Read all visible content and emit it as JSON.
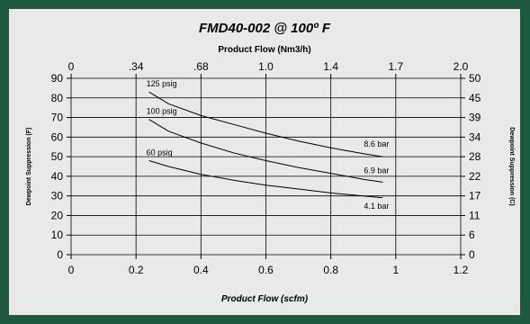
{
  "chart_data": {
    "type": "line",
    "title": "FMD40-002 @ 100º F",
    "xlabel": "Product Flow (scfm)",
    "x2label": "Product Flow (Nm3/h)",
    "ylabel": "Dewpoint Suppression (F)",
    "y2label": "Dewpoint Suppression (C)",
    "xlim": [
      0,
      1.2
    ],
    "ylim": [
      0,
      90
    ],
    "x_ticks": [
      "0",
      "0.2",
      "0.4",
      "0.6",
      "0.8",
      "1",
      "1.2"
    ],
    "x2_ticks": [
      "0",
      ".34",
      ".68",
      "1.0",
      "1.4",
      "1.7",
      "2.0"
    ],
    "y_ticks": [
      "0",
      "10",
      "20",
      "30",
      "40",
      "50",
      "60",
      "70",
      "80",
      "90"
    ],
    "y2_ticks": [
      "0",
      "6",
      "11",
      "17",
      "22",
      "28",
      "34",
      "39",
      "45",
      "50"
    ],
    "grid": true,
    "series": [
      {
        "start_label": "125 psig",
        "end_label": "8.6 bar",
        "x": [
          0.24,
          0.3,
          0.4,
          0.5,
          0.6,
          0.7,
          0.8,
          0.9,
          0.96
        ],
        "y": [
          83,
          77,
          71,
          66.5,
          62,
          58,
          54.5,
          51.5,
          50
        ]
      },
      {
        "start_label": "100 psig",
        "end_label": "6.9 bar",
        "x": [
          0.24,
          0.3,
          0.4,
          0.5,
          0.6,
          0.7,
          0.8,
          0.9,
          0.96
        ],
        "y": [
          69,
          63,
          57,
          52,
          48,
          44.5,
          41.5,
          38.5,
          37
        ]
      },
      {
        "start_label": "60 psig",
        "end_label": "4.1 bar",
        "x": [
          0.24,
          0.3,
          0.4,
          0.5,
          0.6,
          0.7,
          0.8,
          0.9,
          0.96
        ],
        "y": [
          48,
          45,
          41,
          38,
          35.5,
          33.5,
          31.5,
          30,
          29
        ]
      }
    ]
  }
}
